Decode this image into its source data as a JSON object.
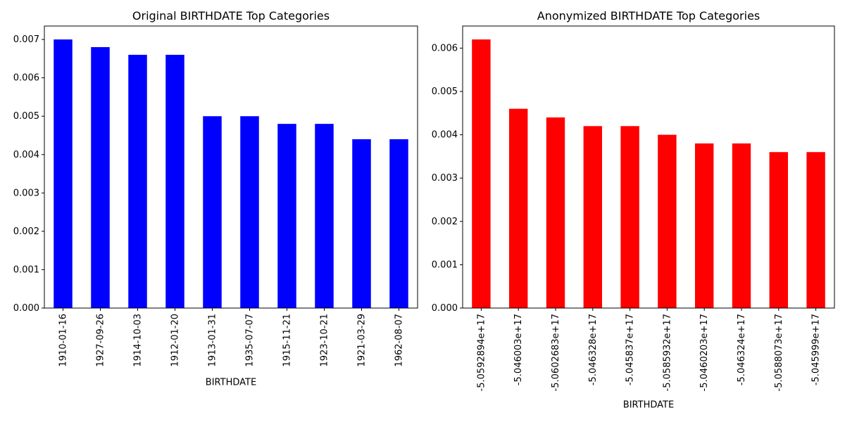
{
  "chart_data": [
    {
      "type": "bar",
      "title": "Original BIRTHDATE Top Categories",
      "xlabel": "BIRTHDATE",
      "ylabel": "",
      "ylim": [
        0,
        0.00735
      ],
      "yticks": [
        "0.000",
        "0.001",
        "0.002",
        "0.003",
        "0.004",
        "0.005",
        "0.006",
        "0.007"
      ],
      "bar_color": "#0000ff",
      "categories": [
        "1910-01-16",
        "1927-09-26",
        "1914-10-03",
        "1912-01-20",
        "1913-01-31",
        "1935-07-07",
        "1915-11-21",
        "1923-10-21",
        "1921-03-29",
        "1962-08-07"
      ],
      "values": [
        0.007,
        0.0068,
        0.0066,
        0.0066,
        0.005,
        0.005,
        0.0048,
        0.0048,
        0.0044,
        0.0044
      ]
    },
    {
      "type": "bar",
      "title": "Anonymized BIRTHDATE Top Categories",
      "xlabel": "BIRTHDATE",
      "ylabel": "",
      "ylim": [
        0,
        0.00651
      ],
      "yticks": [
        "0.000",
        "0.001",
        "0.002",
        "0.003",
        "0.004",
        "0.005",
        "0.006"
      ],
      "bar_color": "#ff0000",
      "categories": [
        "-5.0592894e+17",
        "-5.046003e+17",
        "-5.0602683e+17",
        "-5.046328e+17",
        "-5.045837e+17",
        "-5.0585932e+17",
        "-5.0460203e+17",
        "-5.046324e+17",
        "-5.0588073e+17",
        "-5.045999e+17"
      ],
      "values": [
        0.0062,
        0.0046,
        0.0044,
        0.0042,
        0.0042,
        0.004,
        0.0038,
        0.0038,
        0.0036,
        0.0036
      ]
    }
  ]
}
